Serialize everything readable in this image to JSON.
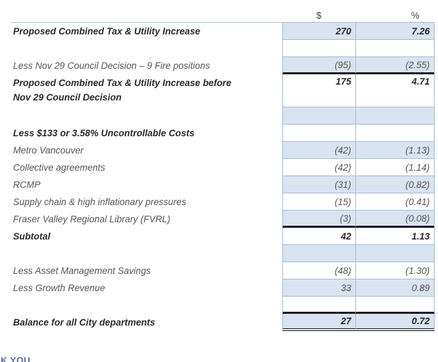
{
  "table": {
    "columns": {
      "dollar_header": "$",
      "percent_header": "%"
    },
    "accent_fill": "#dae3f0",
    "grid_border": "#a4bad8",
    "emphasis_border": "#1b1b1b",
    "rows": [
      {
        "label": "Proposed Combined Tax & Utility Increase",
        "dollar": "270",
        "percent": "7.26",
        "bold": true,
        "shaded": true
      },
      {
        "label": "",
        "dollar": "",
        "percent": ""
      },
      {
        "label": "Less Nov 29 Council Decision – 9 Fire positions",
        "dollar": "(95)",
        "percent": "(2.55)",
        "shaded": true,
        "border_bottom": "black"
      },
      {
        "label": "Proposed Combined Tax & Utility Increase before",
        "label2": "Nov 29 Council Decision",
        "dollar": "175",
        "percent": "4.71",
        "bold": true,
        "tall": true
      },
      {
        "label": "",
        "dollar": "",
        "percent": "",
        "shaded": true
      },
      {
        "label": "Less $133 or 3.58% Uncontrollable Costs",
        "dollar": "",
        "percent": "",
        "bold": true
      },
      {
        "label": "Metro Vancouver",
        "dollar": "(42)",
        "percent": "(1.13)",
        "shaded": true
      },
      {
        "label": "Collective agreements",
        "dollar": "(42)",
        "percent": "(1.14)"
      },
      {
        "label": "RCMP",
        "dollar": "(31)",
        "percent": "(0.82)",
        "shaded": true
      },
      {
        "label": "Supply chain & high inflationary pressures",
        "dollar": "(15)",
        "percent": "(0.41)"
      },
      {
        "label": "Fraser Valley Regional Library (FVRL)",
        "dollar": "(3)",
        "percent": "(0.08)",
        "shaded": true,
        "border_bottom": "black"
      },
      {
        "label": "Subtotal",
        "dollar": "42",
        "percent": "1.13",
        "bold": true
      },
      {
        "label": "",
        "dollar": "",
        "percent": "",
        "shaded": true
      },
      {
        "label": "Less Asset Management Savings",
        "dollar": "(48)",
        "percent": "(1.30)"
      },
      {
        "label": "Less Growth Revenue",
        "dollar": "33",
        "percent": "0.89",
        "shaded": true
      },
      {
        "label": "",
        "dollar": "",
        "percent": "",
        "border_bottom": "black"
      },
      {
        "label": "Balance for all City departments",
        "dollar": "27",
        "percent": "0.72",
        "bold": true,
        "shaded": true,
        "border_bottom": "double"
      }
    ]
  },
  "footer": {
    "partial_text": "K YOU",
    "color": "#4a6fa5"
  }
}
